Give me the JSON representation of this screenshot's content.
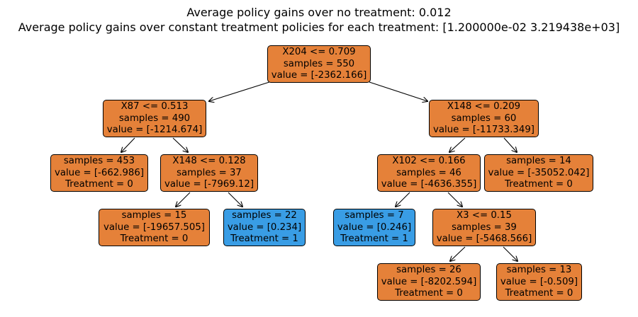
{
  "title": {
    "line1": "Average policy gains over no treatment: 0.012",
    "line2": "Average policy gains over constant treatment policies for each treatment: [1.200000e-02 3.219438e+03]"
  },
  "colors": {
    "orange": "#e58139",
    "blue": "#399de5"
  },
  "nodes": {
    "n0": {
      "line1": "X204 <= 0.709",
      "line2": "samples = 550",
      "line3": "value = [-2362.166]"
    },
    "n1": {
      "line1": "X87 <= 0.513",
      "line2": "samples = 490",
      "line3": "value = [-1214.674]"
    },
    "n2": {
      "line1": "samples = 453",
      "line2": "value = [-662.986]",
      "line3": "Treatment = 0"
    },
    "n3": {
      "line1": "X148 <= 0.128",
      "line2": "samples = 37",
      "line3": "value = [-7969.12]"
    },
    "n4": {
      "line1": "samples = 15",
      "line2": "value = [-19657.505]",
      "line3": "Treatment = 0"
    },
    "n5": {
      "line1": "samples = 22",
      "line2": "value = [0.234]",
      "line3": "Treatment = 1"
    },
    "n6": {
      "line1": "X148 <= 0.209",
      "line2": "samples = 60",
      "line3": "value = [-11733.349]"
    },
    "n7": {
      "line1": "X102 <= 0.166",
      "line2": "samples = 46",
      "line3": "value = [-4636.355]"
    },
    "n8": {
      "line1": "samples = 7",
      "line2": "value = [0.246]",
      "line3": "Treatment = 1"
    },
    "n9": {
      "line1": "X3 <= 0.15",
      "line2": "samples = 39",
      "line3": "value = [-5468.566]"
    },
    "n10": {
      "line1": "samples = 26",
      "line2": "value = [-8202.594]",
      "line3": "Treatment = 0"
    },
    "n11": {
      "line1": "samples = 13",
      "line2": "value = [-0.509]",
      "line3": "Treatment = 0"
    },
    "n12": {
      "line1": "samples = 14",
      "line2": "value = [-35052.042]",
      "line3": "Treatment = 0"
    }
  }
}
